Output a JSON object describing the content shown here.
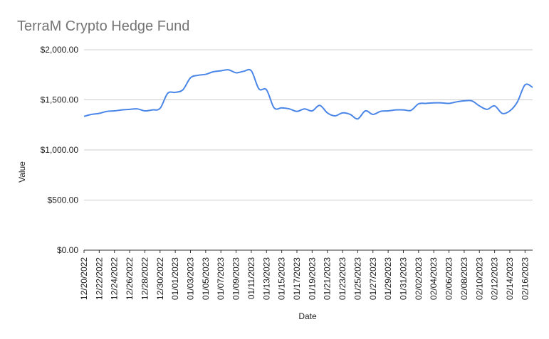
{
  "chart_data": {
    "type": "line",
    "title": "TerraM Crypto Hedge Fund",
    "xlabel": "Date",
    "ylabel": "Value",
    "ylim": [
      0,
      2000
    ],
    "yticks": [
      "$0.00",
      "$500.00",
      "$1,000.00",
      "$1,500.00",
      "$2,000.00"
    ],
    "ytick_values": [
      0,
      500,
      1000,
      1500,
      2000
    ],
    "xticks": [
      "12/20/2022",
      "12/22/2022",
      "12/24/2022",
      "12/26/2022",
      "12/28/2022",
      "12/30/2022",
      "01/01/2023",
      "01/03/2023",
      "01/05/2023",
      "01/07/2023",
      "01/09/2023",
      "01/11/2023",
      "01/13/2023",
      "01/15/2023",
      "01/17/2023",
      "01/19/2023",
      "01/21/2023",
      "01/23/2023",
      "01/25/2023",
      "01/27/2023",
      "01/29/2023",
      "01/31/2023",
      "02/02/2023",
      "02/04/2023",
      "02/06/2023",
      "02/08/2023",
      "02/10/2023",
      "02/12/2023",
      "02/14/2023",
      "02/16/2023"
    ],
    "grid": true,
    "legend": "none",
    "line_color": "#4a86e8",
    "series": [
      {
        "x": [
          "12/20/2022",
          "12/21/2022",
          "12/22/2022",
          "12/23/2022",
          "12/24/2022",
          "12/25/2022",
          "12/26/2022",
          "12/27/2022",
          "12/28/2022",
          "12/29/2022",
          "12/30/2022",
          "12/31/2022",
          "01/01/2023",
          "01/02/2023",
          "01/03/2023",
          "01/04/2023",
          "01/05/2023",
          "01/06/2023",
          "01/07/2023",
          "01/08/2023",
          "01/09/2023",
          "01/10/2023",
          "01/11/2023",
          "01/12/2023",
          "01/13/2023",
          "01/14/2023",
          "01/15/2023",
          "01/16/2023",
          "01/17/2023",
          "01/18/2023",
          "01/19/2023",
          "01/20/2023",
          "01/21/2023",
          "01/22/2023",
          "01/23/2023",
          "01/24/2023",
          "01/25/2023",
          "01/26/2023",
          "01/27/2023",
          "01/28/2023",
          "01/29/2023",
          "01/30/2023",
          "01/31/2023",
          "02/01/2023",
          "02/02/2023",
          "02/03/2023",
          "02/04/2023",
          "02/05/2023",
          "02/06/2023",
          "02/07/2023",
          "02/08/2023",
          "02/09/2023",
          "02/10/2023",
          "02/11/2023",
          "02/12/2023",
          "02/13/2023",
          "02/14/2023",
          "02/15/2023",
          "02/16/2023",
          "02/17/2023"
        ],
        "values": [
          1335,
          1355,
          1365,
          1385,
          1390,
          1400,
          1405,
          1410,
          1390,
          1400,
          1415,
          1565,
          1575,
          1600,
          1720,
          1745,
          1755,
          1780,
          1790,
          1800,
          1770,
          1785,
          1790,
          1610,
          1600,
          1420,
          1420,
          1410,
          1385,
          1410,
          1390,
          1445,
          1370,
          1340,
          1370,
          1355,
          1310,
          1390,
          1355,
          1385,
          1390,
          1400,
          1400,
          1395,
          1460,
          1465,
          1470,
          1470,
          1465,
          1480,
          1490,
          1490,
          1440,
          1405,
          1440,
          1365,
          1390,
          1480,
          1650,
          1625
        ]
      }
    ]
  }
}
